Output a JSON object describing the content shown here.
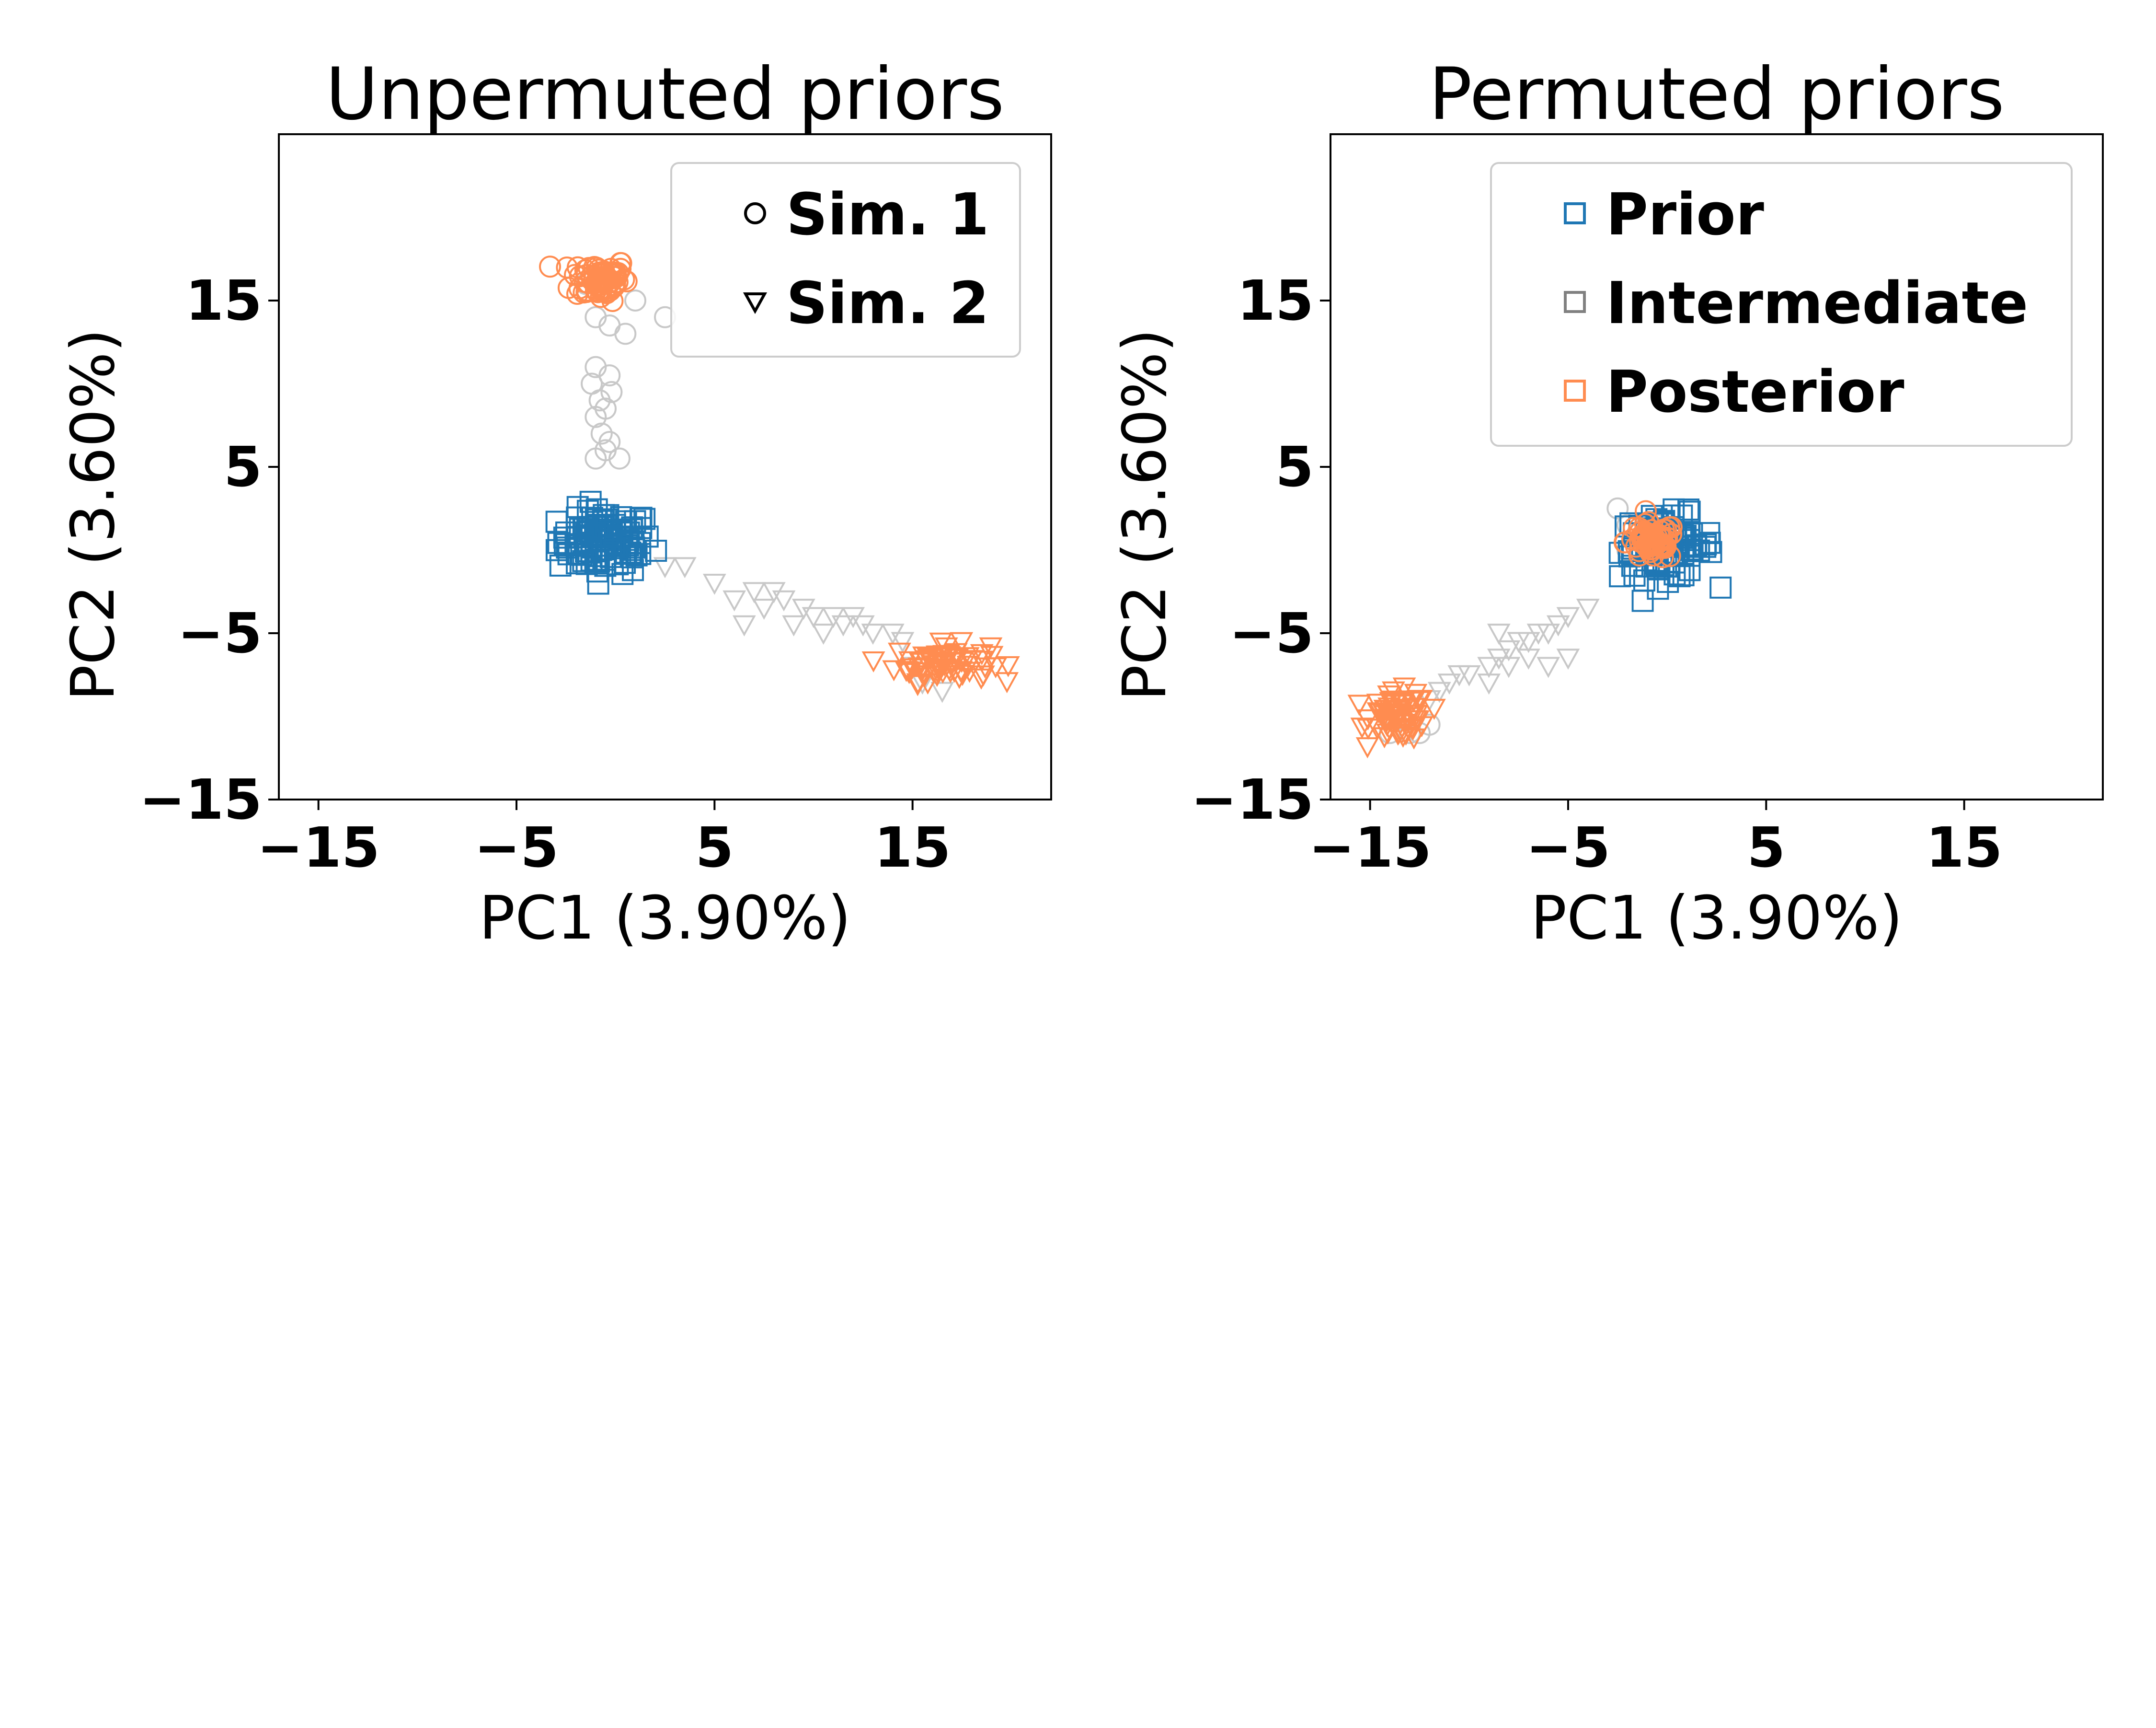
{
  "colors": {
    "prior": "#1f77b4",
    "intermediate": "#c8c8c8",
    "posterior": "#ff8c50",
    "legend_intermediate": "#808080"
  },
  "chart_data": [
    {
      "type": "scatter",
      "title": "Unpermuted priors",
      "xlabel": "PC1 (3.90%)",
      "ylabel": "PC2 (3.60%)",
      "xlim": [
        -17,
        22
      ],
      "ylim": [
        -15,
        25
      ],
      "xticks": [
        -15,
        -5,
        5,
        15
      ],
      "yticks": [
        -15,
        -5,
        5,
        15
      ],
      "xtick_labels": [
        "−15",
        "−5",
        "5",
        "15"
      ],
      "ytick_labels": [
        "−15",
        "−5",
        "5",
        "15"
      ],
      "grid": false,
      "legend": {
        "position": "top-right",
        "entries": [
          {
            "label": "Sim. 1",
            "marker": "circle"
          },
          {
            "label": "Sim. 2",
            "marker": "triangle-down"
          }
        ]
      },
      "series": [
        {
          "group": "prior",
          "sim": 2,
          "marker": "square",
          "center": [
            -0.5,
            0.5
          ],
          "spread": [
            1.5,
            1.2
          ],
          "n": 110
        },
        {
          "group": "intermediate",
          "sim": 1,
          "marker": "circle",
          "points": [
            [
              -1,
              14
            ],
            [
              -0.3,
              13.5
            ],
            [
              0.5,
              13
            ],
            [
              -1,
              11
            ],
            [
              -0.3,
              10.5
            ],
            [
              -1.2,
              10
            ],
            [
              -0.2,
              9.5
            ],
            [
              -0.8,
              9
            ],
            [
              -0.5,
              8.5
            ],
            [
              -1,
              8
            ],
            [
              -0.7,
              7
            ],
            [
              -0.3,
              6.5
            ],
            [
              -0.5,
              6
            ],
            [
              -1,
              5.5
            ],
            [
              0.2,
              5.5
            ],
            [
              2.5,
              14
            ],
            [
              1,
              15
            ],
            [
              -1.5,
              16
            ],
            [
              0,
              16.5
            ]
          ]
        },
        {
          "group": "intermediate",
          "sim": 2,
          "marker": "triangle-down",
          "points": [
            [
              2.5,
              -1
            ],
            [
              3.5,
              -1
            ],
            [
              5,
              -2
            ],
            [
              6,
              -3
            ],
            [
              7,
              -2.5
            ],
            [
              8,
              -2.5
            ],
            [
              8.5,
              -3
            ],
            [
              9.5,
              -3.5
            ],
            [
              10,
              -4
            ],
            [
              11,
              -4
            ],
            [
              11.5,
              -4.5
            ],
            [
              12.5,
              -4.5
            ],
            [
              13,
              -5
            ],
            [
              14,
              -5
            ],
            [
              14.5,
              -5.5
            ],
            [
              9,
              -4.5
            ],
            [
              10.5,
              -5
            ],
            [
              12,
              -4
            ],
            [
              15,
              -7
            ],
            [
              15.5,
              -8
            ],
            [
              16.5,
              -8.5
            ],
            [
              6.5,
              -4.5
            ],
            [
              7.5,
              -3.5
            ]
          ]
        },
        {
          "group": "posterior",
          "sim": 1,
          "marker": "circle",
          "center": [
            -0.8,
            16.3
          ],
          "spread": [
            0.9,
            0.8
          ],
          "n": 70
        },
        {
          "group": "posterior",
          "sim": 2,
          "marker": "triangle-down",
          "center": [
            16.5,
            -6.8
          ],
          "spread": [
            1.5,
            0.7
          ],
          "n": 70
        }
      ]
    },
    {
      "type": "scatter",
      "title": "Permuted priors",
      "xlabel": "PC1 (3.90%)",
      "ylabel": "PC2 (3.60%)",
      "xlim": [
        -17,
        22
      ],
      "ylim": [
        -15,
        25
      ],
      "xticks": [
        -15,
        -5,
        5,
        15
      ],
      "yticks": [
        -15,
        -5,
        5,
        15
      ],
      "xtick_labels": [
        "−15",
        "−5",
        "5",
        "15"
      ],
      "ytick_labels": [
        "−15",
        "−5",
        "5",
        "15"
      ],
      "grid": false,
      "legend": {
        "position": "top-right",
        "entries": [
          {
            "label": "Prior",
            "marker": "square",
            "color_key": "prior"
          },
          {
            "label": "Intermediate",
            "marker": "square",
            "color_key": "legend_intermediate"
          },
          {
            "label": "Posterior",
            "marker": "square",
            "color_key": "posterior"
          }
        ]
      },
      "series": [
        {
          "group": "prior",
          "sim": 2,
          "marker": "square",
          "center": [
            0,
            0.2
          ],
          "spread": [
            1.5,
            1.2
          ],
          "n": 100
        },
        {
          "group": "intermediate",
          "sim": 1,
          "marker": "circle",
          "points": [
            [
              -2.5,
              2.5
            ],
            [
              -2,
              1.5
            ],
            [
              -1.5,
              1
            ],
            [
              -2,
              0
            ],
            [
              -1,
              0.5
            ],
            [
              -0.5,
              1.5
            ],
            [
              -13,
              -11
            ],
            [
              -12.5,
              -11
            ],
            [
              -14,
              -11
            ],
            [
              -12,
              -10.5
            ]
          ]
        },
        {
          "group": "intermediate",
          "sim": 2,
          "marker": "triangle-down",
          "points": [
            [
              -4,
              -3.5
            ],
            [
              -5,
              -4
            ],
            [
              -5.5,
              -4.5
            ],
            [
              -6,
              -5
            ],
            [
              -6.5,
              -5
            ],
            [
              -7,
              -5.5
            ],
            [
              -7.5,
              -5.5
            ],
            [
              -8,
              -6
            ],
            [
              -8.5,
              -6.5
            ],
            [
              -9,
              -7
            ],
            [
              -10,
              -7.5
            ],
            [
              -10.5,
              -7.5
            ],
            [
              -11,
              -8
            ],
            [
              -5,
              -6.5
            ],
            [
              -6,
              -7
            ],
            [
              -7,
              -6.5
            ],
            [
              -8,
              -7
            ],
            [
              -9,
              -8
            ],
            [
              -11.5,
              -8.5
            ],
            [
              -12,
              -9
            ],
            [
              -8.5,
              -5
            ]
          ]
        },
        {
          "group": "posterior",
          "sim": 1,
          "marker": "circle",
          "center": [
            -0.8,
            0.5
          ],
          "spread": [
            0.8,
            0.7
          ],
          "n": 65
        },
        {
          "group": "posterior",
          "sim": 2,
          "marker": "triangle-down",
          "center": [
            -13.5,
            -10
          ],
          "spread": [
            0.9,
            0.9
          ],
          "n": 70
        }
      ]
    }
  ]
}
